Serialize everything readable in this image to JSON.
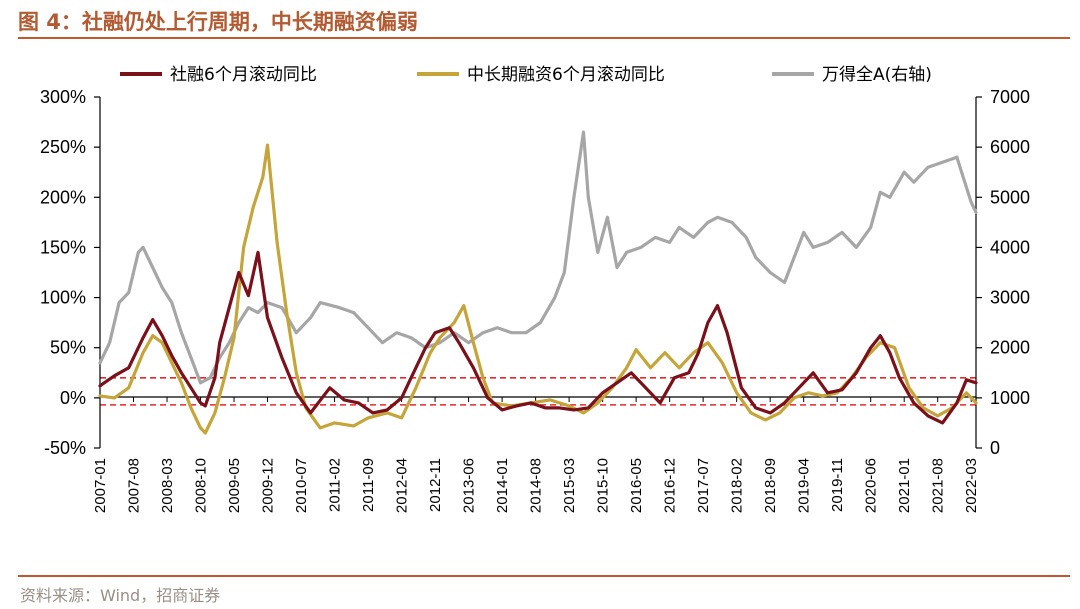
{
  "figure": {
    "title": "图 4：社融仍处上行周期，中长期融资偏弱",
    "source": "资料来源：Wind，招商证券"
  },
  "colors": {
    "social_financing": "#7a1019",
    "medium_long_term": "#c5a43a",
    "wind_all_a": "#a6a6a6",
    "reference_lines": "#e8282b",
    "title": "#b25b33",
    "rule": "#c0592d"
  },
  "chart_data": {
    "type": "line",
    "title": "社融仍处上行周期，中长期融资偏弱",
    "x_tick_labels": [
      "2007-01",
      "2007-08",
      "2008-03",
      "2008-10",
      "2009-05",
      "2009-12",
      "2010-07",
      "2011-02",
      "2011-09",
      "2012-04",
      "2012-11",
      "2013-06",
      "2014-01",
      "2014-08",
      "2015-03",
      "2015-10",
      "2016-05",
      "2016-12",
      "2017-07",
      "2018-02",
      "2018-09",
      "2019-04",
      "2019-11",
      "2020-06",
      "2021-01",
      "2021-08",
      "2022-03"
    ],
    "x_range": [
      "2007-01",
      "2022-04"
    ],
    "y_left": {
      "min": -0.5,
      "max": 3.0,
      "tick_labels": [
        "300%",
        "250%",
        "200%",
        "150%",
        "100%",
        "50%",
        "0%",
        "-50%"
      ],
      "tick_values": [
        3.0,
        2.5,
        2.0,
        1.5,
        1.0,
        0.5,
        0.0,
        -0.5
      ]
    },
    "y_right": {
      "min": 0,
      "max": 7000,
      "tick_labels": [
        "7000",
        "6000",
        "5000",
        "4000",
        "3000",
        "2000",
        "1000",
        "0"
      ],
      "tick_values": [
        7000,
        6000,
        5000,
        4000,
        3000,
        2000,
        1000,
        0
      ]
    },
    "reference_lines": [
      {
        "axis": "left",
        "value": 0.2,
        "style": "dashed"
      },
      {
        "axis": "left",
        "value": -0.07,
        "style": "dashed"
      }
    ],
    "legend": [
      "社融6个月滚动同比",
      "中长期融资6个月滚动同比",
      "万得全A(右轴)"
    ],
    "series": [
      {
        "name": "社融6个月滚动同比",
        "axis": "left",
        "points": [
          [
            "2007-01",
            0.12
          ],
          [
            "2007-04",
            0.22
          ],
          [
            "2007-07",
            0.3
          ],
          [
            "2007-10",
            0.6
          ],
          [
            "2007-12",
            0.78
          ],
          [
            "2008-02",
            0.62
          ],
          [
            "2008-04",
            0.42
          ],
          [
            "2008-06",
            0.25
          ],
          [
            "2008-08",
            0.1
          ],
          [
            "2008-10",
            -0.05
          ],
          [
            "2008-11",
            -0.08
          ],
          [
            "2009-01",
            0.2
          ],
          [
            "2009-02",
            0.55
          ],
          [
            "2009-04",
            0.9
          ],
          [
            "2009-06",
            1.25
          ],
          [
            "2009-08",
            1.02
          ],
          [
            "2009-10",
            1.45
          ],
          [
            "2009-12",
            0.8
          ],
          [
            "2010-03",
            0.4
          ],
          [
            "2010-06",
            0.05
          ],
          [
            "2010-09",
            -0.15
          ],
          [
            "2011-01",
            0.1
          ],
          [
            "2011-04",
            -0.02
          ],
          [
            "2011-07",
            -0.05
          ],
          [
            "2011-10",
            -0.15
          ],
          [
            "2012-01",
            -0.12
          ],
          [
            "2012-04",
            0.0
          ],
          [
            "2012-06",
            0.2
          ],
          [
            "2012-09",
            0.5
          ],
          [
            "2012-11",
            0.65
          ],
          [
            "2013-02",
            0.7
          ],
          [
            "2013-04",
            0.55
          ],
          [
            "2013-07",
            0.3
          ],
          [
            "2013-10",
            0.0
          ],
          [
            "2014-01",
            -0.12
          ],
          [
            "2014-04",
            -0.08
          ],
          [
            "2014-07",
            -0.05
          ],
          [
            "2014-10",
            -0.1
          ],
          [
            "2015-01",
            -0.1
          ],
          [
            "2015-04",
            -0.12
          ],
          [
            "2015-07",
            -0.1
          ],
          [
            "2015-10",
            0.05
          ],
          [
            "2016-01",
            0.15
          ],
          [
            "2016-04",
            0.25
          ],
          [
            "2016-07",
            0.1
          ],
          [
            "2016-10",
            -0.05
          ],
          [
            "2017-01",
            0.2
          ],
          [
            "2017-04",
            0.25
          ],
          [
            "2017-06",
            0.45
          ],
          [
            "2017-08",
            0.75
          ],
          [
            "2017-10",
            0.92
          ],
          [
            "2017-12",
            0.65
          ],
          [
            "2018-03",
            0.1
          ],
          [
            "2018-06",
            -0.1
          ],
          [
            "2018-09",
            -0.15
          ],
          [
            "2018-12",
            -0.05
          ],
          [
            "2019-03",
            0.1
          ],
          [
            "2019-06",
            0.25
          ],
          [
            "2019-09",
            0.05
          ],
          [
            "2019-12",
            0.08
          ],
          [
            "2020-03",
            0.25
          ],
          [
            "2020-06",
            0.5
          ],
          [
            "2020-08",
            0.62
          ],
          [
            "2020-10",
            0.45
          ],
          [
            "2020-12",
            0.2
          ],
          [
            "2021-03",
            -0.05
          ],
          [
            "2021-06",
            -0.18
          ],
          [
            "2021-09",
            -0.25
          ],
          [
            "2021-12",
            -0.05
          ],
          [
            "2022-02",
            0.18
          ],
          [
            "2022-04",
            0.15
          ]
        ]
      },
      {
        "name": "中长期融资6个月滚动同比",
        "axis": "left",
        "points": [
          [
            "2007-01",
            0.02
          ],
          [
            "2007-04",
            0.0
          ],
          [
            "2007-07",
            0.1
          ],
          [
            "2007-10",
            0.45
          ],
          [
            "2007-12",
            0.62
          ],
          [
            "2008-02",
            0.55
          ],
          [
            "2008-04",
            0.35
          ],
          [
            "2008-06",
            0.15
          ],
          [
            "2008-08",
            -0.1
          ],
          [
            "2008-10",
            -0.3
          ],
          [
            "2008-11",
            -0.35
          ],
          [
            "2009-01",
            -0.15
          ],
          [
            "2009-03",
            0.2
          ],
          [
            "2009-05",
            0.6
          ],
          [
            "2009-07",
            1.5
          ],
          [
            "2009-09",
            1.9
          ],
          [
            "2009-11",
            2.2
          ],
          [
            "2009-12",
            2.52
          ],
          [
            "2010-02",
            1.55
          ],
          [
            "2010-04",
            0.85
          ],
          [
            "2010-06",
            0.25
          ],
          [
            "2010-08",
            -0.1
          ],
          [
            "2010-11",
            -0.3
          ],
          [
            "2011-02",
            -0.25
          ],
          [
            "2011-06",
            -0.28
          ],
          [
            "2011-09",
            -0.2
          ],
          [
            "2012-01",
            -0.15
          ],
          [
            "2012-04",
            -0.2
          ],
          [
            "2012-07",
            0.1
          ],
          [
            "2012-10",
            0.45
          ],
          [
            "2012-12",
            0.6
          ],
          [
            "2013-03",
            0.75
          ],
          [
            "2013-05",
            0.92
          ],
          [
            "2013-07",
            0.55
          ],
          [
            "2013-09",
            0.2
          ],
          [
            "2013-11",
            -0.05
          ],
          [
            "2014-03",
            -0.08
          ],
          [
            "2014-07",
            -0.05
          ],
          [
            "2014-11",
            -0.02
          ],
          [
            "2015-03",
            -0.08
          ],
          [
            "2015-06",
            -0.15
          ],
          [
            "2015-09",
            -0.05
          ],
          [
            "2015-12",
            0.1
          ],
          [
            "2016-03",
            0.3
          ],
          [
            "2016-05",
            0.48
          ],
          [
            "2016-08",
            0.3
          ],
          [
            "2016-11",
            0.45
          ],
          [
            "2017-02",
            0.3
          ],
          [
            "2017-05",
            0.45
          ],
          [
            "2017-08",
            0.55
          ],
          [
            "2017-11",
            0.35
          ],
          [
            "2018-02",
            0.05
          ],
          [
            "2018-05",
            -0.15
          ],
          [
            "2018-08",
            -0.22
          ],
          [
            "2018-11",
            -0.15
          ],
          [
            "2019-02",
            0.0
          ],
          [
            "2019-05",
            0.05
          ],
          [
            "2019-08",
            0.02
          ],
          [
            "2019-11",
            0.05
          ],
          [
            "2020-02",
            0.2
          ],
          [
            "2020-05",
            0.4
          ],
          [
            "2020-08",
            0.55
          ],
          [
            "2020-11",
            0.5
          ],
          [
            "2021-02",
            0.1
          ],
          [
            "2021-05",
            -0.1
          ],
          [
            "2021-08",
            -0.18
          ],
          [
            "2021-11",
            -0.1
          ],
          [
            "2022-02",
            0.05
          ],
          [
            "2022-04",
            -0.05
          ]
        ]
      },
      {
        "name": "万得全A(右轴)",
        "axis": "right",
        "points": [
          [
            "2007-01",
            1700
          ],
          [
            "2007-03",
            2100
          ],
          [
            "2007-05",
            2900
          ],
          [
            "2007-07",
            3100
          ],
          [
            "2007-09",
            3900
          ],
          [
            "2007-10",
            4000
          ],
          [
            "2007-12",
            3600
          ],
          [
            "2008-02",
            3200
          ],
          [
            "2008-04",
            2900
          ],
          [
            "2008-06",
            2300
          ],
          [
            "2008-08",
            1800
          ],
          [
            "2008-10",
            1300
          ],
          [
            "2008-12",
            1400
          ],
          [
            "2009-02",
            1800
          ],
          [
            "2009-04",
            2100
          ],
          [
            "2009-06",
            2500
          ],
          [
            "2009-08",
            2800
          ],
          [
            "2009-10",
            2700
          ],
          [
            "2009-12",
            2900
          ],
          [
            "2010-03",
            2800
          ],
          [
            "2010-06",
            2300
          ],
          [
            "2010-09",
            2600
          ],
          [
            "2010-11",
            2900
          ],
          [
            "2011-03",
            2800
          ],
          [
            "2011-06",
            2700
          ],
          [
            "2011-09",
            2400
          ],
          [
            "2011-12",
            2100
          ],
          [
            "2012-03",
            2300
          ],
          [
            "2012-06",
            2200
          ],
          [
            "2012-09",
            2000
          ],
          [
            "2012-12",
            2100
          ],
          [
            "2013-03",
            2300
          ],
          [
            "2013-06",
            2100
          ],
          [
            "2013-09",
            2300
          ],
          [
            "2013-12",
            2400
          ],
          [
            "2014-03",
            2300
          ],
          [
            "2014-06",
            2300
          ],
          [
            "2014-09",
            2500
          ],
          [
            "2014-12",
            3000
          ],
          [
            "2015-02",
            3500
          ],
          [
            "2015-04",
            5000
          ],
          [
            "2015-06",
            6300
          ],
          [
            "2015-07",
            5000
          ],
          [
            "2015-09",
            3900
          ],
          [
            "2015-11",
            4600
          ],
          [
            "2016-01",
            3600
          ],
          [
            "2016-03",
            3900
          ],
          [
            "2016-06",
            4000
          ],
          [
            "2016-09",
            4200
          ],
          [
            "2016-12",
            4100
          ],
          [
            "2017-02",
            4400
          ],
          [
            "2017-05",
            4200
          ],
          [
            "2017-08",
            4500
          ],
          [
            "2017-10",
            4600
          ],
          [
            "2018-01",
            4500
          ],
          [
            "2018-04",
            4200
          ],
          [
            "2018-06",
            3800
          ],
          [
            "2018-09",
            3500
          ],
          [
            "2018-12",
            3300
          ],
          [
            "2019-02",
            3800
          ],
          [
            "2019-04",
            4300
          ],
          [
            "2019-06",
            4000
          ],
          [
            "2019-09",
            4100
          ],
          [
            "2019-12",
            4300
          ],
          [
            "2020-03",
            4000
          ],
          [
            "2020-06",
            4400
          ],
          [
            "2020-08",
            5100
          ],
          [
            "2020-10",
            5000
          ],
          [
            "2021-01",
            5500
          ],
          [
            "2021-03",
            5300
          ],
          [
            "2021-06",
            5600
          ],
          [
            "2021-09",
            5700
          ],
          [
            "2021-12",
            5800
          ],
          [
            "2022-01",
            5500
          ],
          [
            "2022-03",
            4900
          ],
          [
            "2022-04",
            4700
          ]
        ]
      }
    ]
  }
}
